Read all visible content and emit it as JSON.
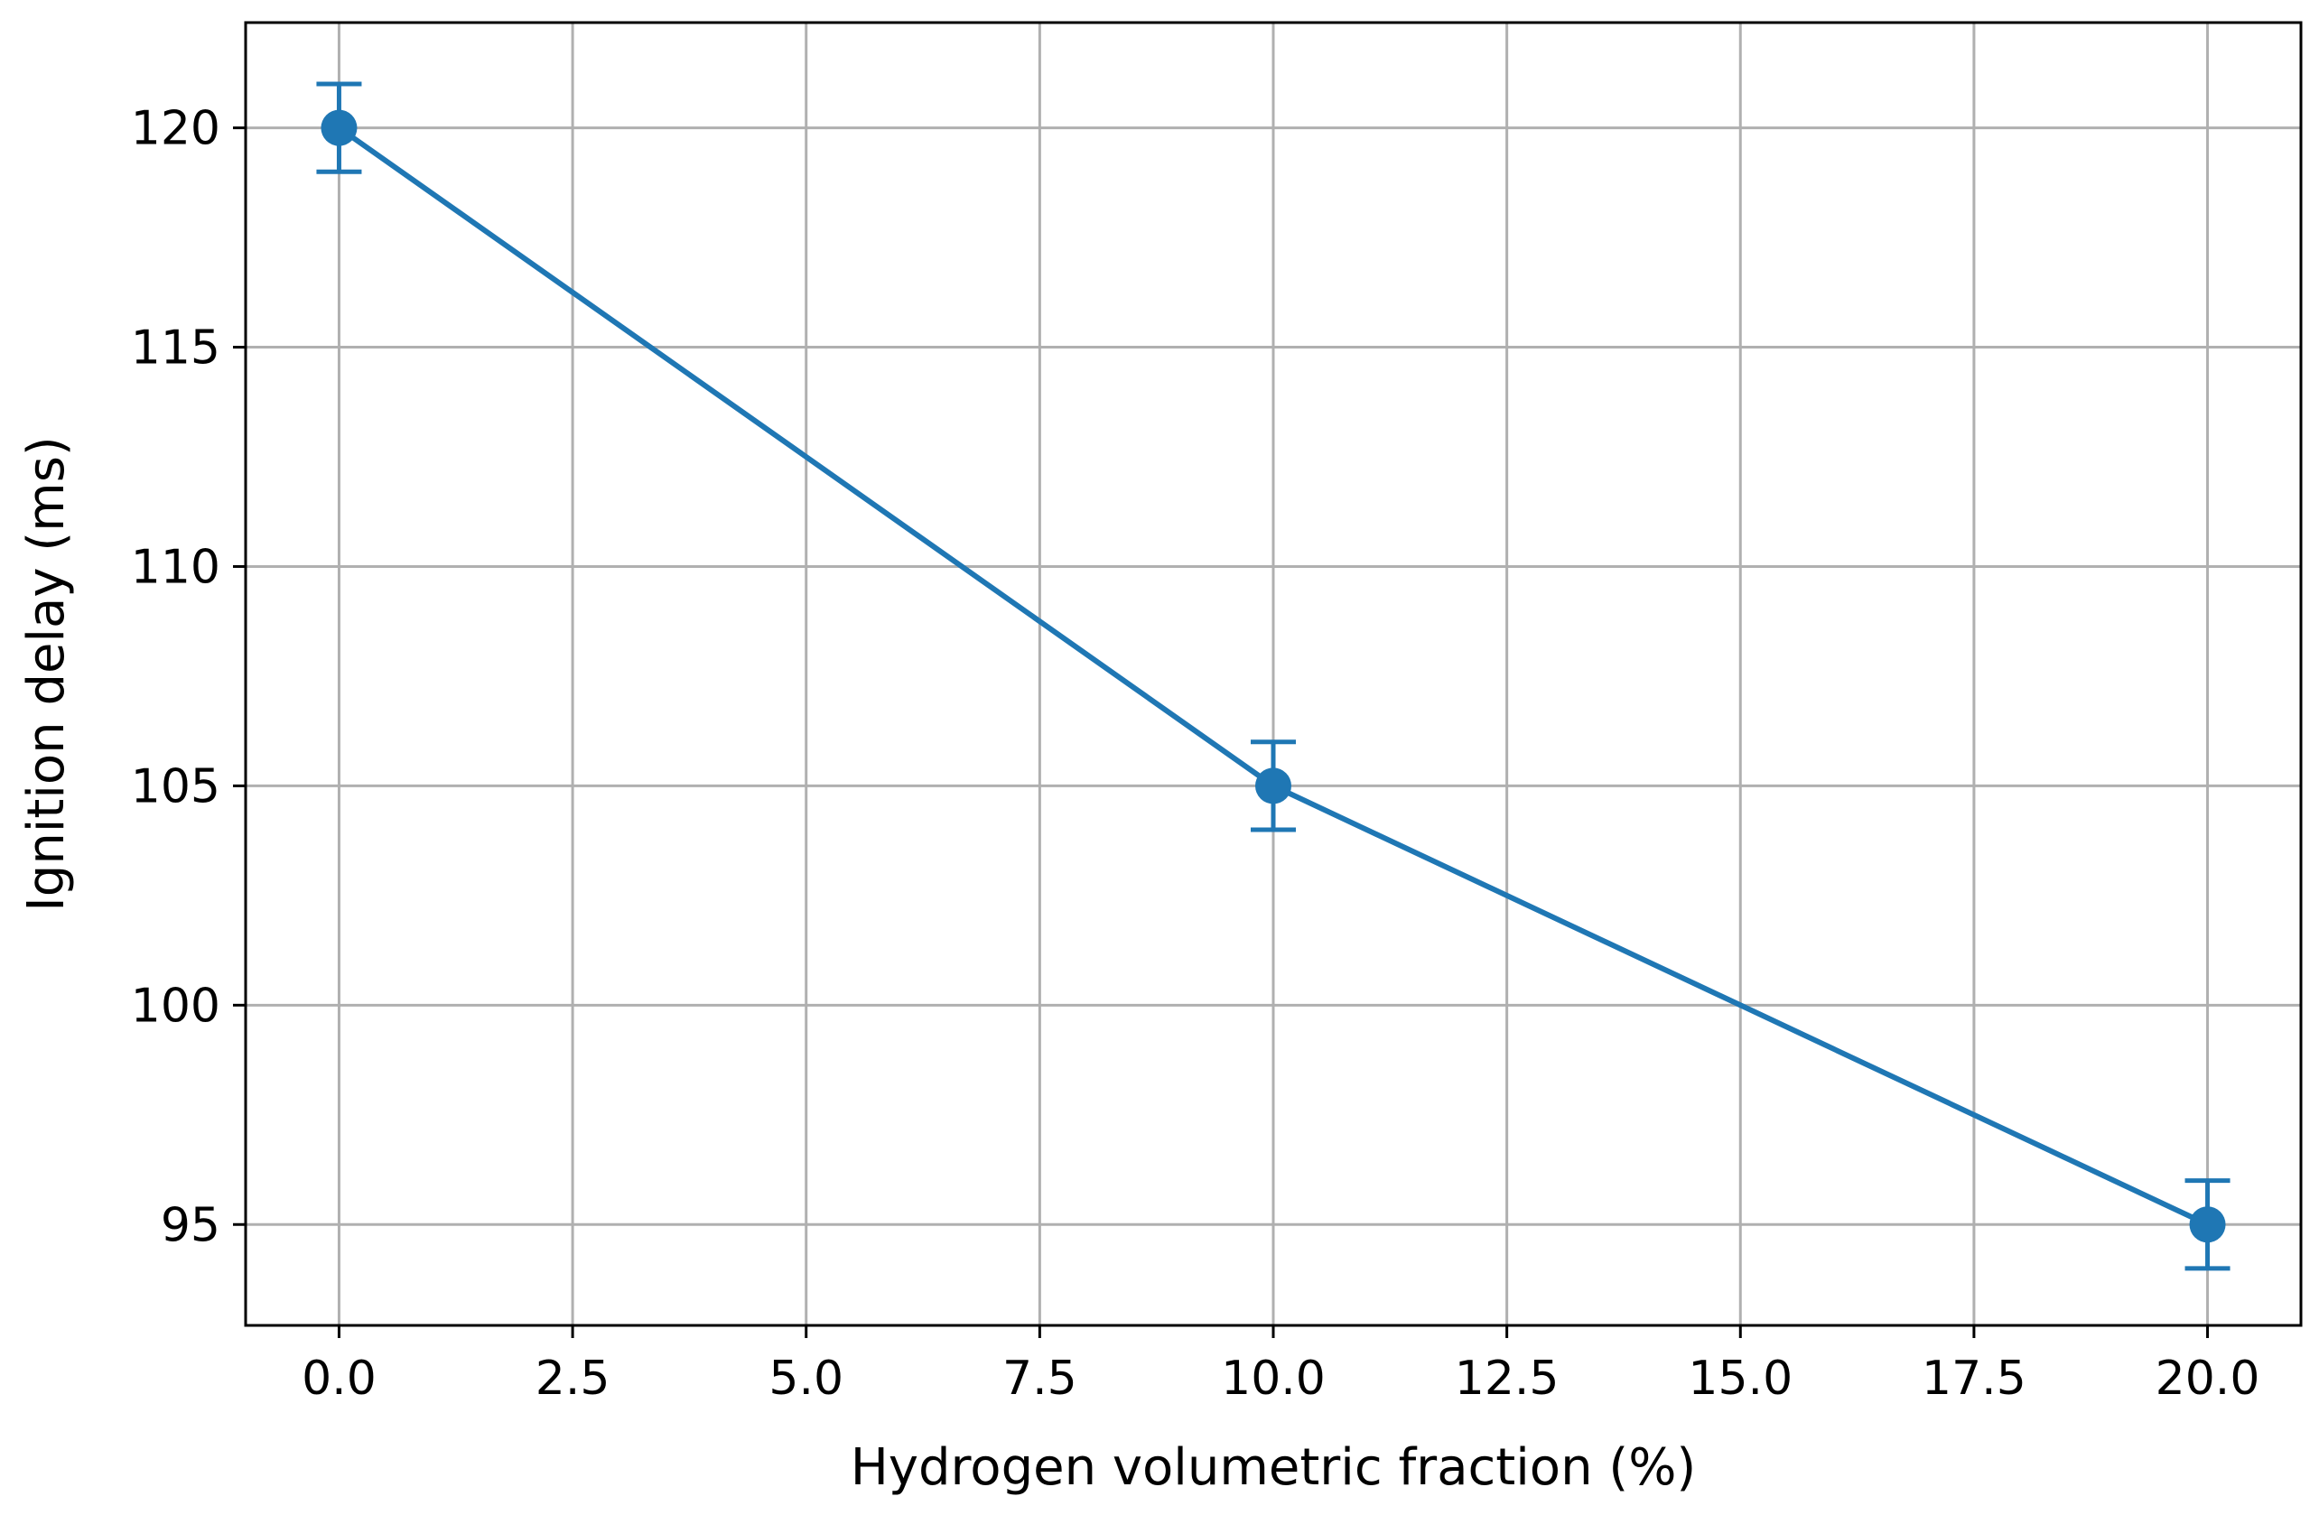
{
  "chart_data": {
    "type": "line",
    "title": "",
    "xlabel": "Hydrogen volumetric fraction (%)",
    "ylabel": "Ignition delay (ms)",
    "xlim": [
      -1.0,
      21.0
    ],
    "ylim": [
      92.7,
      122.4
    ],
    "xticks": [
      0.0,
      2.5,
      5.0,
      7.5,
      10.0,
      12.5,
      15.0,
      17.5,
      20.0
    ],
    "xtick_labels": [
      "0.0",
      "2.5",
      "5.0",
      "7.5",
      "10.0",
      "12.5",
      "15.0",
      "17.5",
      "20.0"
    ],
    "yticks": [
      95,
      100,
      105,
      110,
      115,
      120
    ],
    "ytick_labels": [
      "95",
      "100",
      "105",
      "110",
      "115",
      "120"
    ],
    "grid": true,
    "series": [
      {
        "color": "#1f77b4",
        "x": [
          0,
          10,
          20
        ],
        "y": [
          120,
          105,
          95
        ],
        "yerr": [
          1,
          1,
          1
        ]
      }
    ]
  }
}
